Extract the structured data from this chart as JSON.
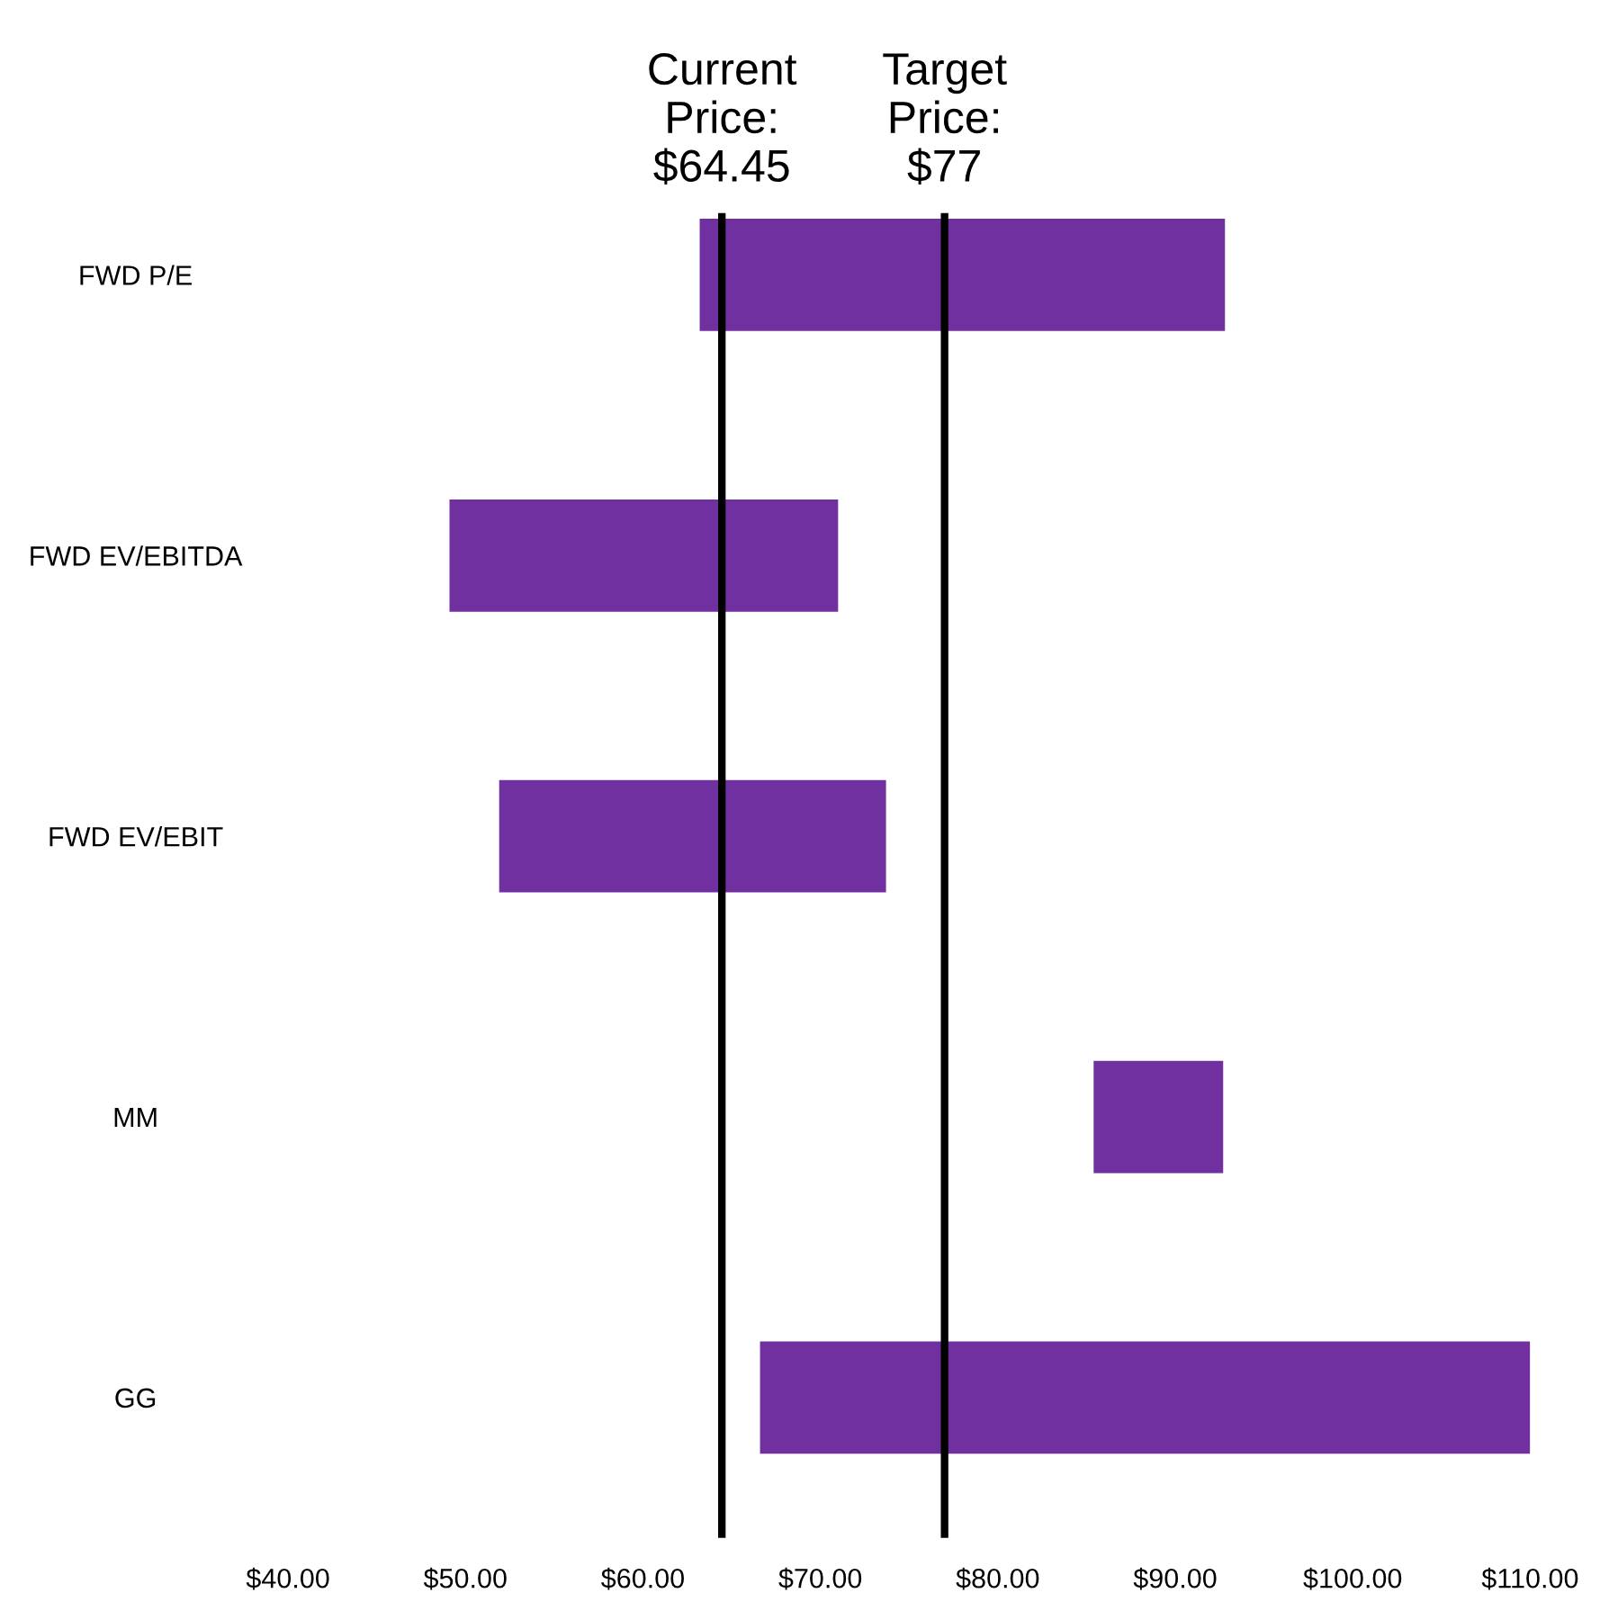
{
  "chart_data": {
    "type": "bar",
    "orientation": "horizontal",
    "categories": [
      "FWD P/E",
      "FWD EV/EBITDA",
      "FWD EV/EBIT",
      "MM",
      "GG"
    ],
    "base": [
      63.2,
      49.1,
      51.9,
      85.4,
      66.6
    ],
    "values": [
      29.6,
      21.9,
      21.8,
      7.3,
      43.4
    ],
    "color": "#7030a0",
    "xlim": [
      40,
      110
    ],
    "xticks": [
      {
        "value": 40,
        "label": "$40.00"
      },
      {
        "value": 50,
        "label": "$50.00"
      },
      {
        "value": 60,
        "label": "$60.00"
      },
      {
        "value": 70,
        "label": "$70.00"
      },
      {
        "value": 80,
        "label": "$80.00"
      },
      {
        "value": 90,
        "label": "$90.00"
      },
      {
        "value": 100,
        "label": "$100.00"
      },
      {
        "value": 110,
        "label": "$110.00"
      }
    ],
    "ref_lines": [
      {
        "axis": "x",
        "value": 64.45,
        "label": "Current\nPrice:\n$64.45",
        "color": "#000000"
      },
      {
        "axis": "x",
        "value": 77,
        "label": "Target\nPrice:\n$77",
        "color": "#000000"
      }
    ],
    "grid": false,
    "legend": false
  }
}
